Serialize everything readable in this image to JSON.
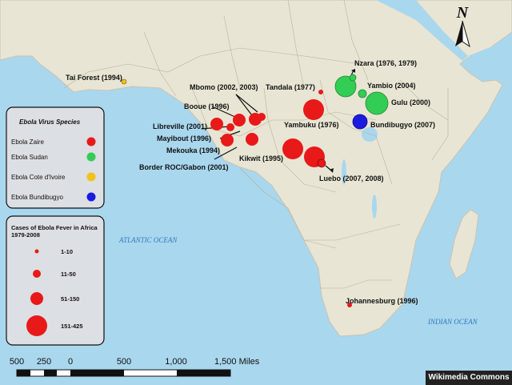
{
  "map": {
    "oceans": [
      "ATLANTIC OCEAN",
      "INDIAN OCEAN"
    ],
    "compass_letter": "N",
    "credit": "Wikimedia Commons",
    "colors": {
      "water": "#a9d7ee",
      "land": "#e9e5d4",
      "zaire": "#e81919",
      "sudan": "#33cc55",
      "cote_divoire": "#f2c21b",
      "bundibugyo": "#1a1ae0"
    }
  },
  "outbreaks": [
    {
      "label": "Tai Forest (1994)",
      "species": "cote_divoire"
    },
    {
      "label": "Mbomo (2002, 2003)",
      "species": "zaire"
    },
    {
      "label": "Tandala (1977)",
      "species": "zaire"
    },
    {
      "label": "Nzara (1976, 1979)",
      "species": "sudan"
    },
    {
      "label": "Yambio (2004)",
      "species": "sudan"
    },
    {
      "label": "Booue (1996)",
      "species": "zaire"
    },
    {
      "label": "Libreville (2001)",
      "species": "zaire"
    },
    {
      "label": "Mayibout (1996)",
      "species": "zaire"
    },
    {
      "label": "Mekouka (1994)",
      "species": "zaire"
    },
    {
      "label": "Border ROC/Gabon (2001)",
      "species": "zaire"
    },
    {
      "label": "Kikwit (1995)",
      "species": "zaire"
    },
    {
      "label": "Yambuku (1976)",
      "species": "zaire"
    },
    {
      "label": "Gulu (2000)",
      "species": "sudan"
    },
    {
      "label": "Bundibugyo (2007)",
      "species": "bundibugyo"
    },
    {
      "label": "Luebo (2007, 2008)",
      "species": "zaire"
    },
    {
      "label": "Johannesburg (1996)",
      "species": "zaire"
    }
  ],
  "species_legend": {
    "title": "Ebola Virus Species",
    "items": [
      {
        "label": "Ebola Zaire",
        "color": "#e81919"
      },
      {
        "label": "Ebola Sudan",
        "color": "#33cc55"
      },
      {
        "label": "Ebola Cote d'Ivoire",
        "color": "#f2c21b"
      },
      {
        "label": "Ebola Bundibugyo",
        "color": "#1a1ae0"
      }
    ]
  },
  "size_legend": {
    "title_line1": "Cases of Ebola Fever in Africa",
    "title_line2": "1979-2008",
    "items": [
      "1-10",
      "11-50",
      "51-150",
      "151-425"
    ]
  },
  "scale_bar": {
    "labels": [
      "500",
      "250",
      "0",
      "500",
      "1,000",
      "1,500 Miles"
    ]
  }
}
